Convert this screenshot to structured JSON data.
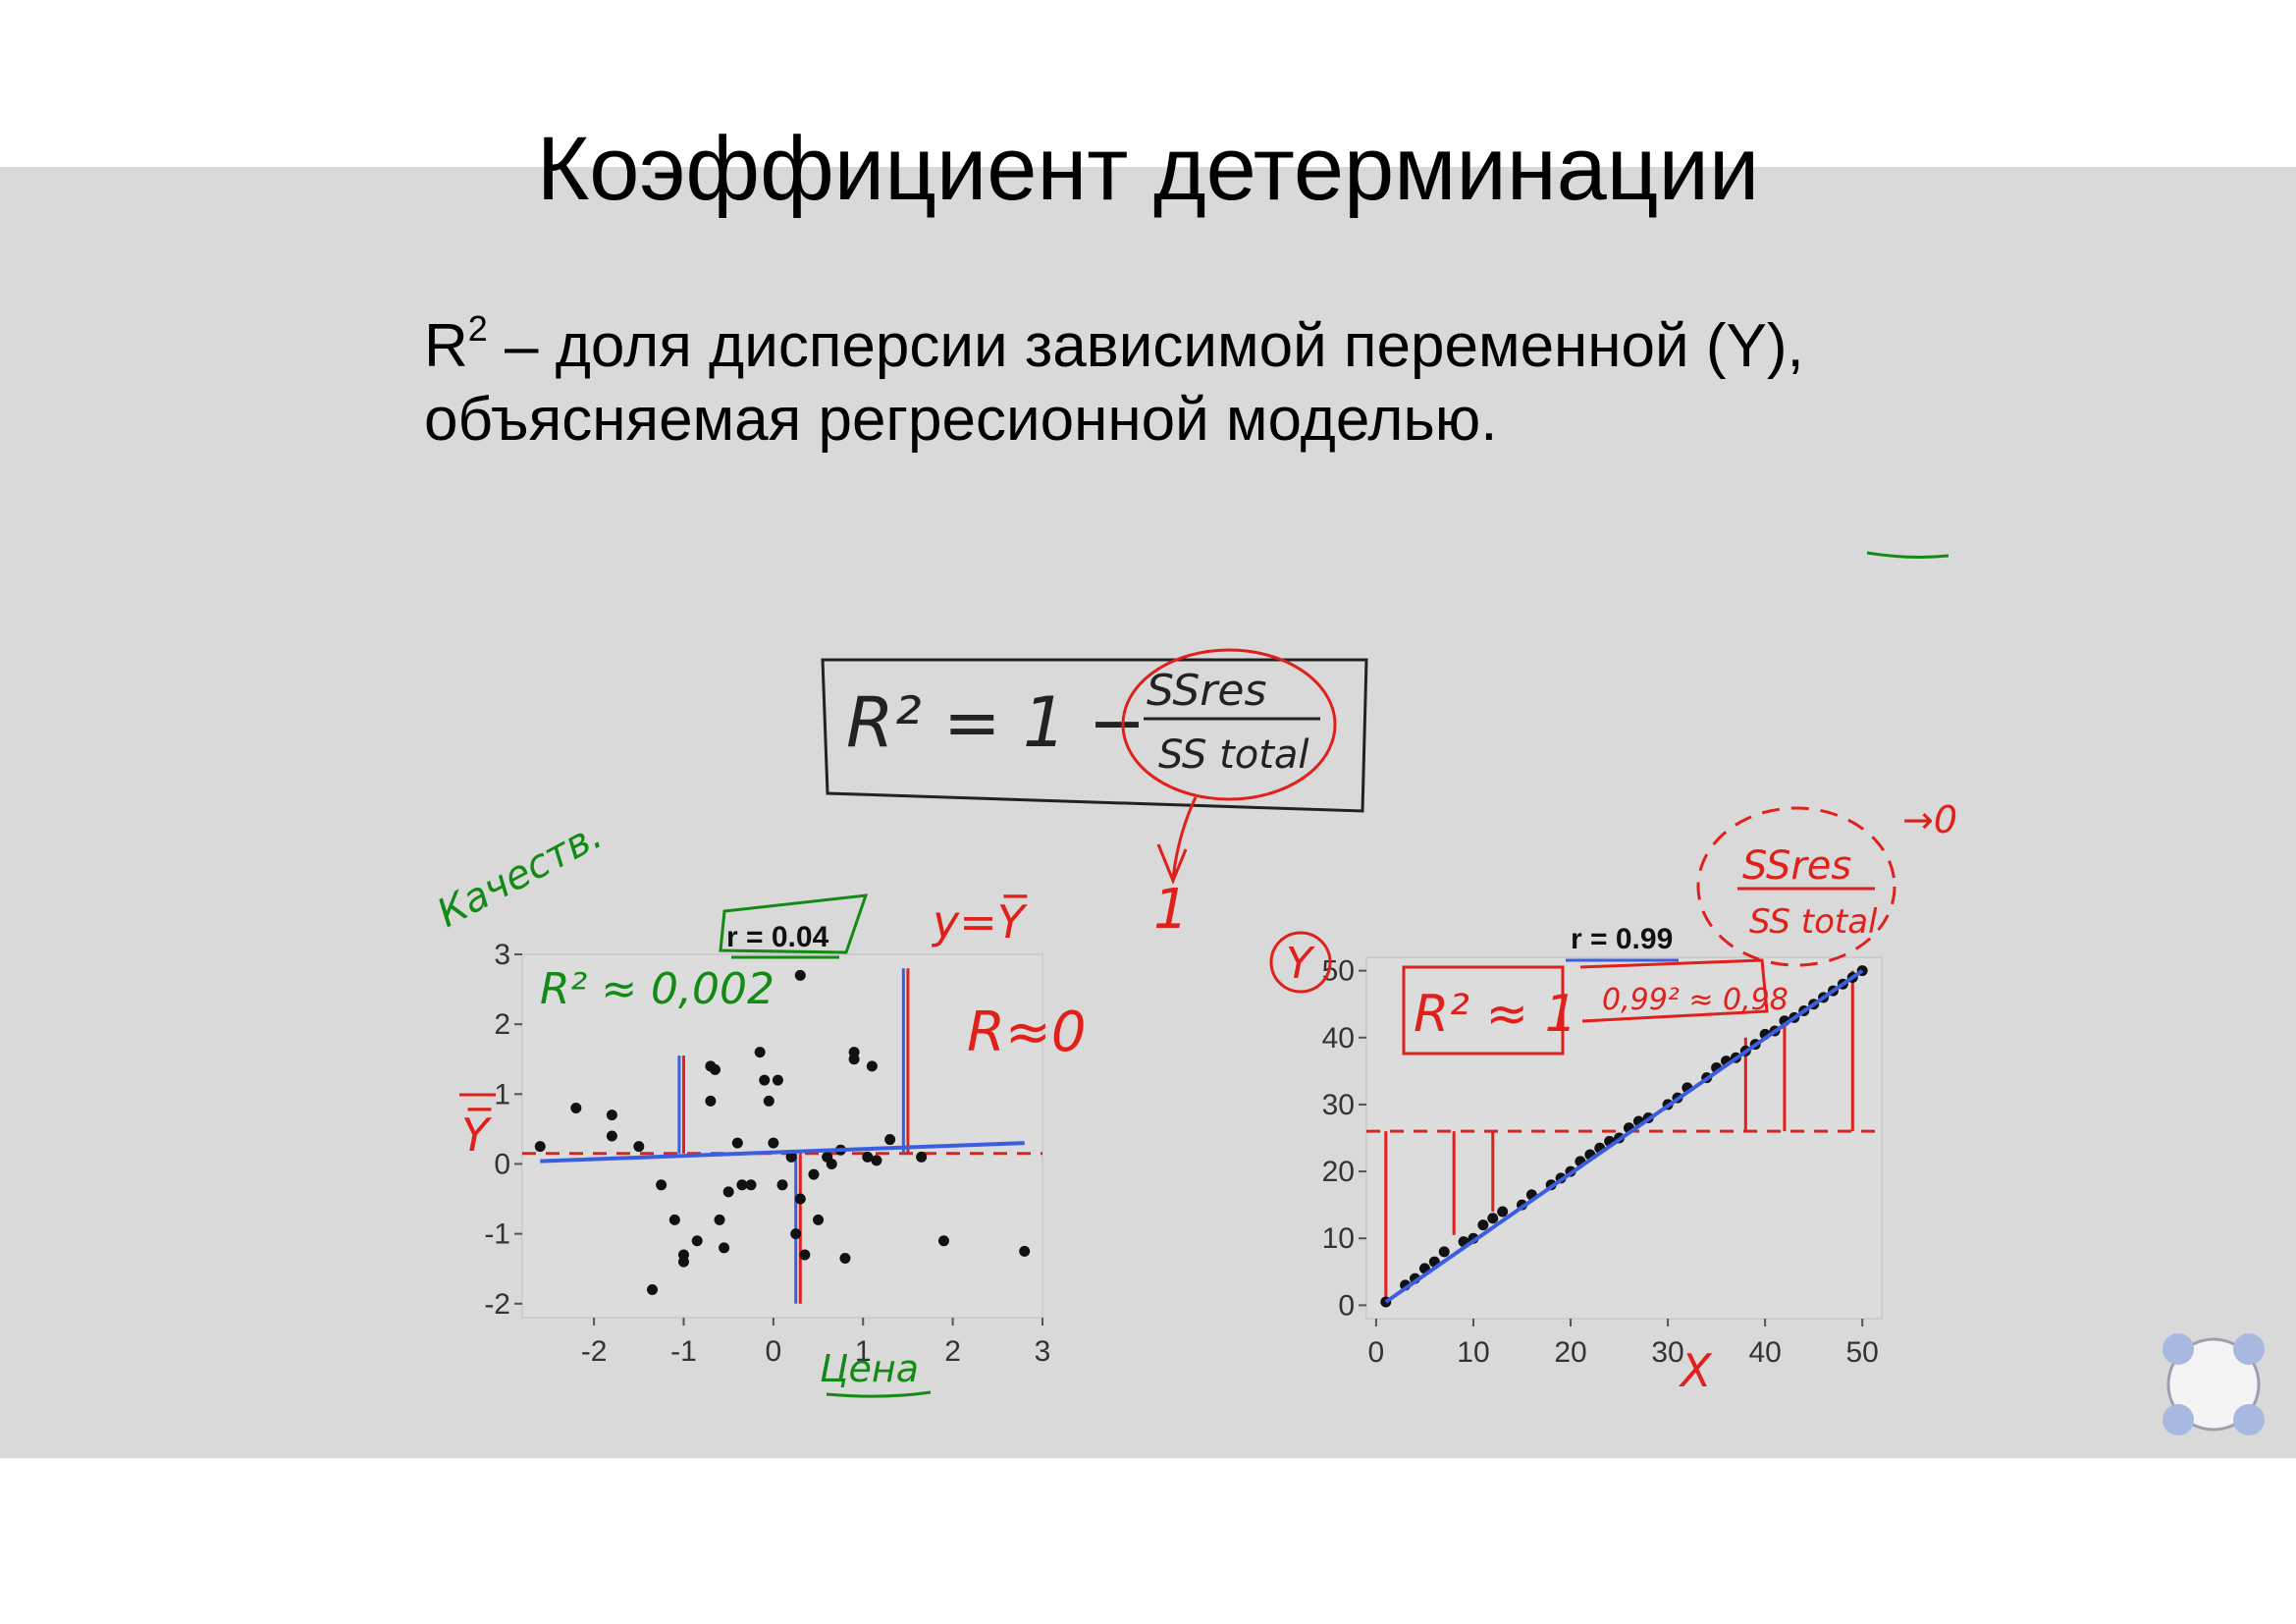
{
  "slide": {
    "title": "Коэффициент детерминации",
    "def_r": "R",
    "def_sup": "2",
    "def_line1_rest": " –  доля дисперсии зависимой переменной (Y),",
    "def_line2": "объясняемая регресионной моделью.",
    "formula": {
      "lhs": "R² = 1 −",
      "num": "SSres",
      "den": "SS total",
      "arrow_value": "1"
    },
    "annotation_colors": {
      "red": "#e0201b",
      "green": "#138a13",
      "blue": "#3050d8",
      "box": "#222222"
    }
  },
  "chart_data": [
    {
      "type": "scatter",
      "title": "r = 0.04",
      "xlabel": "",
      "ylabel": "",
      "xlim": [
        -2.8,
        3.0
      ],
      "ylim": [
        -2.2,
        3.0
      ],
      "x_ticks": [
        -2,
        -1,
        0,
        1,
        2,
        3
      ],
      "y_ticks": [
        3,
        2,
        1,
        0,
        -1,
        -2
      ],
      "grid": false,
      "points": [
        [
          -2.6,
          0.25
        ],
        [
          -2.2,
          0.8
        ],
        [
          -1.8,
          0.7
        ],
        [
          -1.8,
          0.4
        ],
        [
          -1.5,
          0.25
        ],
        [
          -1.35,
          -1.8
        ],
        [
          -1.25,
          -0.3
        ],
        [
          -1.1,
          -0.8
        ],
        [
          -1.0,
          -1.3
        ],
        [
          -1.0,
          -1.4
        ],
        [
          -0.85,
          -1.1
        ],
        [
          -0.7,
          0.9
        ],
        [
          -0.7,
          1.4
        ],
        [
          -0.65,
          1.35
        ],
        [
          -0.6,
          -0.8
        ],
        [
          -0.55,
          -1.2
        ],
        [
          -0.5,
          -0.4
        ],
        [
          -0.4,
          0.3
        ],
        [
          -0.35,
          -0.3
        ],
        [
          -0.25,
          -0.3
        ],
        [
          -0.15,
          1.6
        ],
        [
          -0.1,
          1.2
        ],
        [
          -0.05,
          0.9
        ],
        [
          0.0,
          0.3
        ],
        [
          0.05,
          1.2
        ],
        [
          0.1,
          -0.3
        ],
        [
          0.2,
          0.1
        ],
        [
          0.25,
          -1.0
        ],
        [
          0.3,
          -0.5
        ],
        [
          0.35,
          -1.3
        ],
        [
          0.3,
          2.7
        ],
        [
          0.45,
          -0.15
        ],
        [
          0.5,
          -0.8
        ],
        [
          0.6,
          0.1
        ],
        [
          0.65,
          0.0
        ],
        [
          0.75,
          0.2
        ],
        [
          0.8,
          -1.35
        ],
        [
          0.9,
          1.5
        ],
        [
          0.9,
          1.6
        ],
        [
          1.05,
          0.1
        ],
        [
          1.1,
          1.4
        ],
        [
          1.15,
          0.05
        ],
        [
          1.3,
          0.35
        ],
        [
          1.65,
          0.1
        ],
        [
          1.9,
          -1.1
        ],
        [
          2.8,
          -1.25
        ]
      ],
      "fit_line": {
        "x": [
          -2.6,
          2.8
        ],
        "y": [
          0.04,
          0.3
        ]
      },
      "mean_y": 0.15,
      "annotations": {
        "r2": "R² ≈ 0,002",
        "r_approx": "R≈0",
        "y_eq": "y=Y̅",
        "y_bar": "Y̅",
        "top_left": "Качеств.",
        "bottom": "Цена"
      }
    },
    {
      "type": "scatter",
      "title": "r = 0.99",
      "xlabel": "X",
      "ylabel": "Y",
      "xlim": [
        -1,
        52
      ],
      "ylim": [
        -2,
        52
      ],
      "x_ticks": [
        0,
        10,
        20,
        30,
        40,
        50
      ],
      "y_ticks": [
        50,
        40,
        30,
        20,
        10,
        0
      ],
      "grid": false,
      "points": [
        [
          1,
          0.5
        ],
        [
          3,
          3
        ],
        [
          4,
          4
        ],
        [
          5,
          5.5
        ],
        [
          6,
          6.5
        ],
        [
          7,
          8
        ],
        [
          9,
          9.5
        ],
        [
          10,
          10
        ],
        [
          11,
          12
        ],
        [
          12,
          13
        ],
        [
          13,
          14
        ],
        [
          15,
          15
        ],
        [
          16,
          16.5
        ],
        [
          18,
          18
        ],
        [
          19,
          19
        ],
        [
          20,
          20
        ],
        [
          21,
          21.5
        ],
        [
          22,
          22.5
        ],
        [
          23,
          23.5
        ],
        [
          24,
          24.5
        ],
        [
          25,
          25
        ],
        [
          26,
          26.5
        ],
        [
          27,
          27.5
        ],
        [
          28,
          28
        ],
        [
          30,
          30
        ],
        [
          31,
          31
        ],
        [
          32,
          32.5
        ],
        [
          34,
          34
        ],
        [
          35,
          35.5
        ],
        [
          36,
          36.5
        ],
        [
          37,
          37
        ],
        [
          38,
          38
        ],
        [
          39,
          39
        ],
        [
          40,
          40.5
        ],
        [
          41,
          41
        ],
        [
          42,
          42.5
        ],
        [
          43,
          43
        ],
        [
          44,
          44
        ],
        [
          45,
          45
        ],
        [
          46,
          46
        ],
        [
          47,
          47
        ],
        [
          48,
          48
        ],
        [
          49,
          49
        ],
        [
          50,
          50
        ]
      ],
      "fit_line": {
        "x": [
          1,
          50
        ],
        "y": [
          0.5,
          50
        ]
      },
      "mean_y": 26,
      "annotations": {
        "r2": "R² ≈ 1",
        "r_sq": "0,99² ≈ 0,98",
        "ss_num": "SSres",
        "ss_den": "SS total",
        "to_zero": "→0"
      }
    }
  ]
}
